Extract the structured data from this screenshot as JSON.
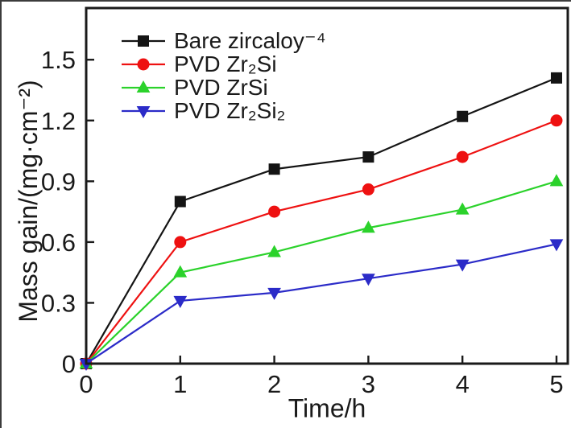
{
  "figure": {
    "background": "#ffffff",
    "frame_color": "#1a1a1a",
    "text_color": "#1a1a1a"
  },
  "chart_data": {
    "type": "line",
    "title": "",
    "xlabel": "Time/h",
    "ylabel": "Mass gain/(mg·cm⁻²)",
    "x": [
      0,
      1,
      2,
      3,
      4,
      5
    ],
    "xticks": [
      0,
      1,
      2,
      3,
      4,
      5
    ],
    "yticks": [
      0,
      0.3,
      0.6,
      0.9,
      1.2,
      1.5
    ],
    "xlim": [
      0,
      5.12
    ],
    "ylim": [
      0,
      1.755
    ],
    "grid": false,
    "legend_position": "top-left",
    "series": [
      {
        "name": "Bare zircaloy⁻⁴",
        "color": "#141414",
        "marker": "square",
        "values": [
          0,
          0.8,
          0.96,
          1.02,
          1.22,
          1.41
        ]
      },
      {
        "name": "PVD Zr₂Si",
        "color": "#ee1111",
        "marker": "circle",
        "values": [
          0,
          0.6,
          0.75,
          0.86,
          1.02,
          1.2
        ]
      },
      {
        "name": "PVD ZrSi",
        "color": "#2bd22b",
        "marker": "triangle-up",
        "values": [
          0,
          0.45,
          0.55,
          0.67,
          0.76,
          0.9
        ]
      },
      {
        "name": "PVD Zr₂Si₂",
        "color": "#2b2bc8",
        "marker": "triangle-down",
        "values": [
          0,
          0.31,
          0.35,
          0.42,
          0.49,
          0.59
        ]
      }
    ]
  }
}
